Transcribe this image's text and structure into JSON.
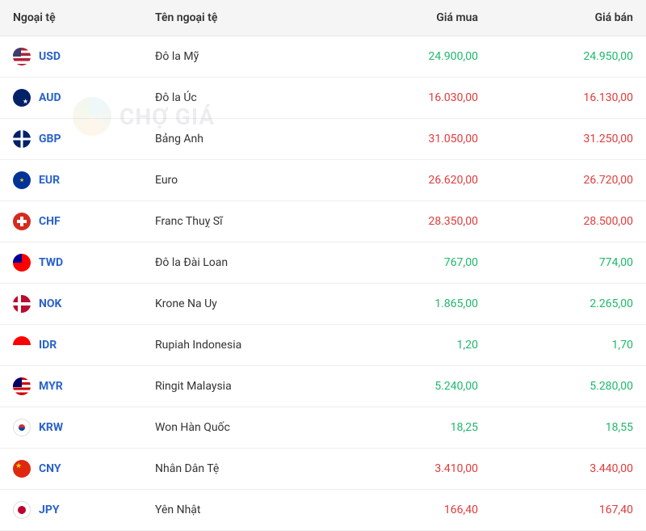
{
  "watermark": {
    "text": "CHỢ GIÁ"
  },
  "colors": {
    "header_bg": "#f5f5f5",
    "border": "#eeeeee",
    "code": "#2962cc",
    "up": "#1eb86c",
    "down": "#e03b3b"
  },
  "columns": [
    {
      "key": "code",
      "label": "Ngoại tệ"
    },
    {
      "key": "name",
      "label": "Tên ngoại tệ"
    },
    {
      "key": "buy",
      "label": "Giá mua"
    },
    {
      "key": "sell",
      "label": "Giá bán"
    }
  ],
  "rows": [
    {
      "code": "USD",
      "name": "Đô la Mỹ",
      "buy": "24.900,00",
      "sell": "24.950,00",
      "dir": "up",
      "flag": "flag-usd"
    },
    {
      "code": "AUD",
      "name": "Đô la Úc",
      "buy": "16.030,00",
      "sell": "16.130,00",
      "dir": "down",
      "flag": "flag-aud"
    },
    {
      "code": "GBP",
      "name": "Bảng Anh",
      "buy": "31.050,00",
      "sell": "31.250,00",
      "dir": "down",
      "flag": "flag-gbp"
    },
    {
      "code": "EUR",
      "name": "Euro",
      "buy": "26.620,00",
      "sell": "26.720,00",
      "dir": "down",
      "flag": "flag-eur"
    },
    {
      "code": "CHF",
      "name": "Franc Thuỵ Sĩ",
      "buy": "28.350,00",
      "sell": "28.500,00",
      "dir": "down",
      "flag": "flag-chf"
    },
    {
      "code": "TWD",
      "name": "Đô la Đài Loan",
      "buy": "767,00",
      "sell": "774,00",
      "dir": "up",
      "flag": "flag-twd"
    },
    {
      "code": "NOK",
      "name": "Krone Na Uy",
      "buy": "1.865,00",
      "sell": "2.265,00",
      "dir": "up",
      "flag": "flag-nok"
    },
    {
      "code": "IDR",
      "name": "Rupiah Indonesia",
      "buy": "1,20",
      "sell": "1,70",
      "dir": "up",
      "flag": "flag-idr"
    },
    {
      "code": "MYR",
      "name": "Ringit Malaysia",
      "buy": "5.240,00",
      "sell": "5.280,00",
      "dir": "up",
      "flag": "flag-myr"
    },
    {
      "code": "KRW",
      "name": "Won Hàn Quốc",
      "buy": "18,25",
      "sell": "18,55",
      "dir": "up",
      "flag": "flag-krw"
    },
    {
      "code": "CNY",
      "name": "Nhân Dân Tệ",
      "buy": "3.410,00",
      "sell": "3.440,00",
      "dir": "down",
      "flag": "flag-cny"
    },
    {
      "code": "JPY",
      "name": "Yên Nhật",
      "buy": "166,40",
      "sell": "167,40",
      "dir": "down",
      "flag": "flag-jpy"
    }
  ]
}
